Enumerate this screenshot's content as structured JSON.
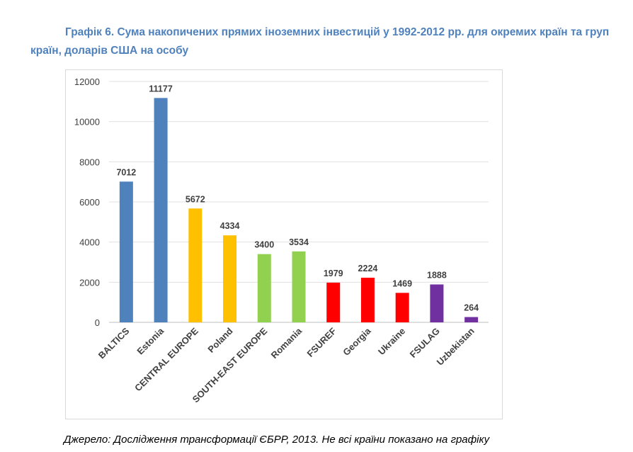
{
  "caption": {
    "line1": "Графік 6. Сума накопичених прямих іноземних інвестицій у 1992-2012 рр. для окремих країн та груп",
    "line2": "країн, доларів США на особу"
  },
  "source": "Джерело: Дослідження трансформації ЄБРР, 2013. Не всі країни показано на графіку",
  "chart_data": {
    "type": "bar",
    "title": "",
    "xlabel": "",
    "ylabel": "",
    "ylim": [
      0,
      12000
    ],
    "yticks": [
      0,
      2000,
      4000,
      6000,
      8000,
      10000,
      12000
    ],
    "grid": true,
    "legend": "none",
    "categories": [
      "BALTICS",
      "Estonia",
      "CENTRAL EUROPE",
      "Poland",
      "SOUTH-EAST EUROPE",
      "Romania",
      "FSUREF",
      "Georgia",
      "Ukraine",
      "FSULAG",
      "Uzbekistan"
    ],
    "values": [
      7012,
      11177,
      5672,
      4334,
      3400,
      3534,
      1979,
      2224,
      1469,
      1888,
      264
    ],
    "data_labels": [
      "7012",
      "11177",
      "5672",
      "4334",
      "3400",
      "3534",
      "1979",
      "2224",
      "1469",
      "1888",
      "264"
    ],
    "colors": [
      "#4f81bd",
      "#4f81bd",
      "#ffc000",
      "#ffc000",
      "#92d050",
      "#92d050",
      "#ff0000",
      "#ff0000",
      "#ff0000",
      "#7030a0",
      "#7030a0"
    ]
  }
}
